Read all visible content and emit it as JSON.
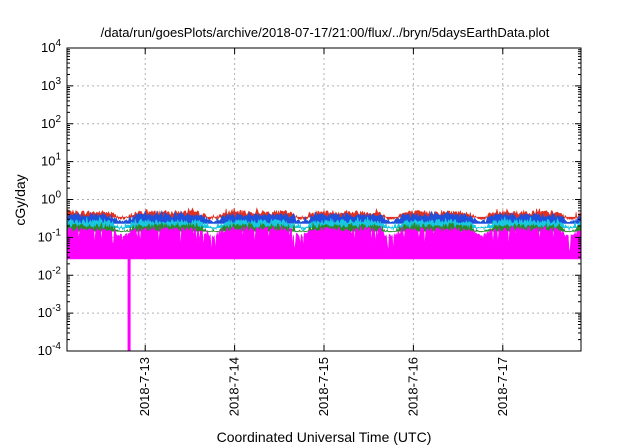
{
  "chart_data": {
    "type": "area",
    "title": "/data/run/goesPlots/archive/2018-07-17/21:00/flux/../bryn/5daysEarthData.plot",
    "xlabel": "Coordinated Universal Time (UTC)",
    "ylabel": "cGy/day",
    "y_scale": "log",
    "ylim": [
      0.0001,
      10000
    ],
    "y_ticks": [
      {
        "base": "10",
        "exp": "4",
        "value": 10000
      },
      {
        "base": "10",
        "exp": "3",
        "value": 1000
      },
      {
        "base": "10",
        "exp": "2",
        "value": 100
      },
      {
        "base": "10",
        "exp": "1",
        "value": 10
      },
      {
        "base": "10",
        "exp": "0",
        "value": 1
      },
      {
        "base": "10",
        "exp": "-1",
        "value": 0.1
      },
      {
        "base": "10",
        "exp": "-2",
        "value": 0.01
      },
      {
        "base": "10",
        "exp": "-3",
        "value": 0.001
      },
      {
        "base": "10",
        "exp": "-4",
        "value": 0.0001
      }
    ],
    "xlim": [
      "2018-07-12 03:00",
      "2018-07-17 21:00"
    ],
    "x_ticks": [
      "2018-7-13",
      "2018-7-14",
      "2018-7-15",
      "2018-7-16",
      "2018-7-17"
    ],
    "grid": true,
    "legend": "none",
    "series": [
      {
        "color": "#e03020",
        "role": "upper envelope",
        "typical_value": 0.45,
        "min_value": 0.3,
        "max_value": 0.6
      },
      {
        "color": "#1e50dc",
        "role": "band",
        "typical_value": 0.38,
        "min_value": 0.25,
        "max_value": 0.5
      },
      {
        "color": "#19c8e0",
        "role": "band",
        "typical_value": 0.26,
        "min_value": 0.15,
        "max_value": 0.35
      },
      {
        "color": "#2a8a2a",
        "role": "band",
        "typical_value": 0.2,
        "min_value": 0.14,
        "max_value": 0.24
      },
      {
        "color": "#ff00ff",
        "role": "lower band",
        "typical_value": 0.16,
        "min_value": 0.03,
        "max_value": 0.2,
        "dropout": {
          "time": "2018-07-12 19:40",
          "value": 0.0001
        }
      }
    ]
  }
}
